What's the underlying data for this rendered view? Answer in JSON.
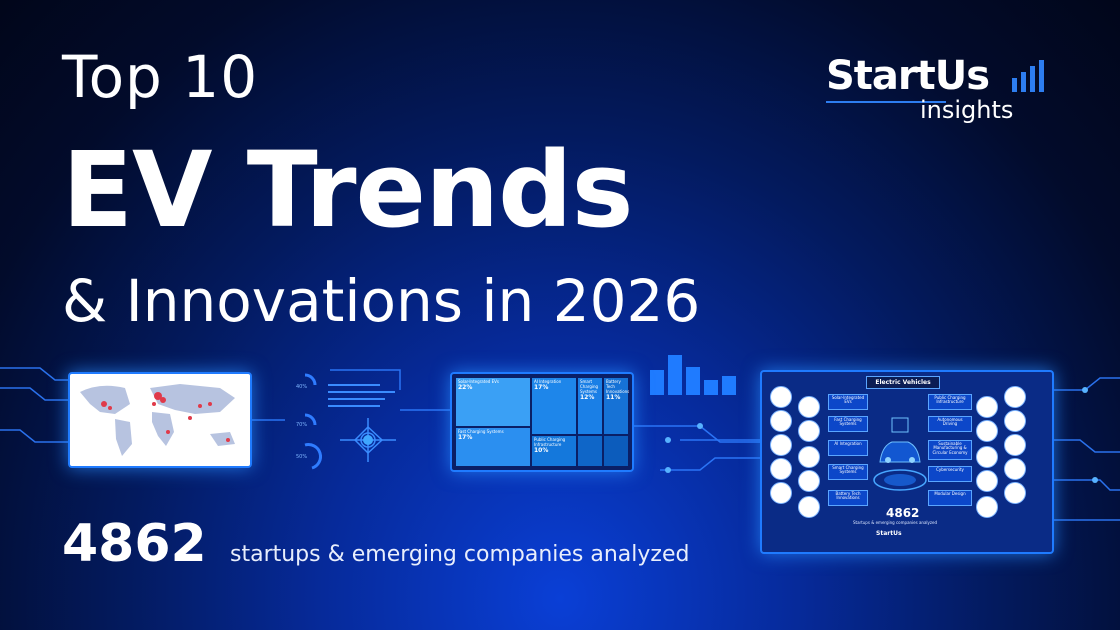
{
  "headline": {
    "line1": "Top 10",
    "line2": "EV Trends",
    "line3": "& Innovations in 2026"
  },
  "brand": {
    "name": "StartUs",
    "tagline": "insights",
    "accent_color": "#2d7df0"
  },
  "stat": {
    "number": "4862",
    "description": "startups & emerging companies analyzed"
  },
  "treemap": {
    "cells": [
      {
        "label": "Solar-Integrated EVs",
        "value": "22%"
      },
      {
        "label": "AI Integration",
        "value": "17%"
      },
      {
        "label": "Smart Charging Systems",
        "value": "12%"
      },
      {
        "label": "Battery Tech Innovations",
        "value": "11%"
      },
      {
        "label": "Fast Charging Systems",
        "value": "17%"
      },
      {
        "label": "Public Charging Infrastructure",
        "value": "10%"
      }
    ]
  },
  "ev_panel": {
    "title": "Electric Vehicles",
    "left_trends": [
      "Solar-Integrated EVs",
      "Fast Charging Systems",
      "AI Integration",
      "Smart Charging Systems",
      "Battery Tech Innovations"
    ],
    "right_trends": [
      "Public Charging Infrastructure",
      "Autonomous Driving",
      "Sustainable Manufacturing & Circular Economy",
      "Cybersecurity",
      "Modular Design"
    ],
    "count": "4862",
    "caption": "Startups & emerging companies analyzed",
    "brand": "StartUs"
  },
  "colors": {
    "background": "#031a5e",
    "glow": "#1f7bff"
  }
}
